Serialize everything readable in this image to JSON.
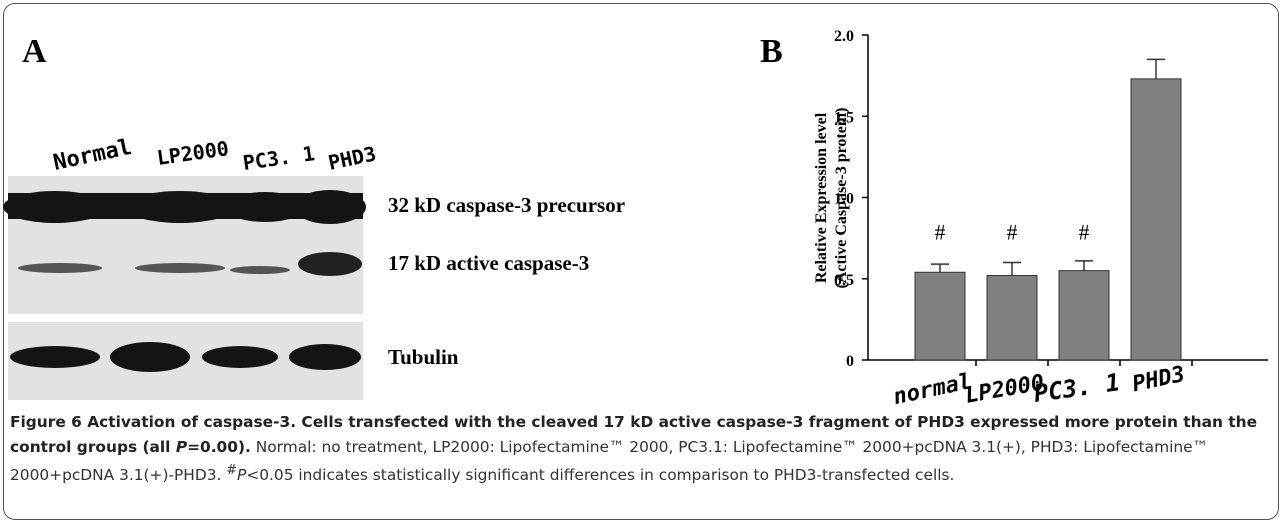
{
  "panel_a": {
    "letter": "A",
    "lanes": [
      "Normal",
      "LP2000",
      "PC3. 1",
      "PHD3"
    ],
    "bands": [
      "32 kD caspase-3 precursor",
      "17 kD active caspase-3",
      "Tubulin"
    ]
  },
  "chart_data": {
    "type": "bar",
    "letter": "B",
    "y_label": [
      "Relative Expression level",
      "(Active Caspase-3 protein)"
    ],
    "categories": [
      "normal",
      "LP2000",
      "PC3. 1",
      "PHD3"
    ],
    "values": [
      0.54,
      0.52,
      0.55,
      1.73
    ],
    "errors": [
      0.05,
      0.08,
      0.06,
      0.12
    ],
    "color": "#808080",
    "annotations": [
      {
        "category": "normal",
        "text": "#"
      },
      {
        "category": "LP2000",
        "text": "#"
      },
      {
        "category": "PC3. 1",
        "text": "#"
      }
    ],
    "ylim": [
      0,
      2
    ],
    "yticks": [
      0,
      0.5,
      {
        "value": 1,
        "label": "1.0"
      },
      1.5,
      {
        "value": 2,
        "label": "2.0"
      }
    ]
  },
  "caption": {
    "title": [
      "Figure 6 Activation of caspase-3. Cells transfected with the cleaved 17 kD active caspase-3 fragment of PHD3 expressed more protein than the control groups (all ",
      "P",
      "=0.00)."
    ],
    "body": [
      " Normal: no treatment, LP2000: Lipofectamine™ 2000, PC3.1: Lipofectamine™ 2000+pcDNA 3.1(+), PHD3: Lipofectamine™ 2000+pcDNA 3.1(+)-PHD3. ",
      "#",
      "P",
      "<0.05 indicates statistically significant differences in comparison to PHD3-transfected cells."
    ]
  }
}
